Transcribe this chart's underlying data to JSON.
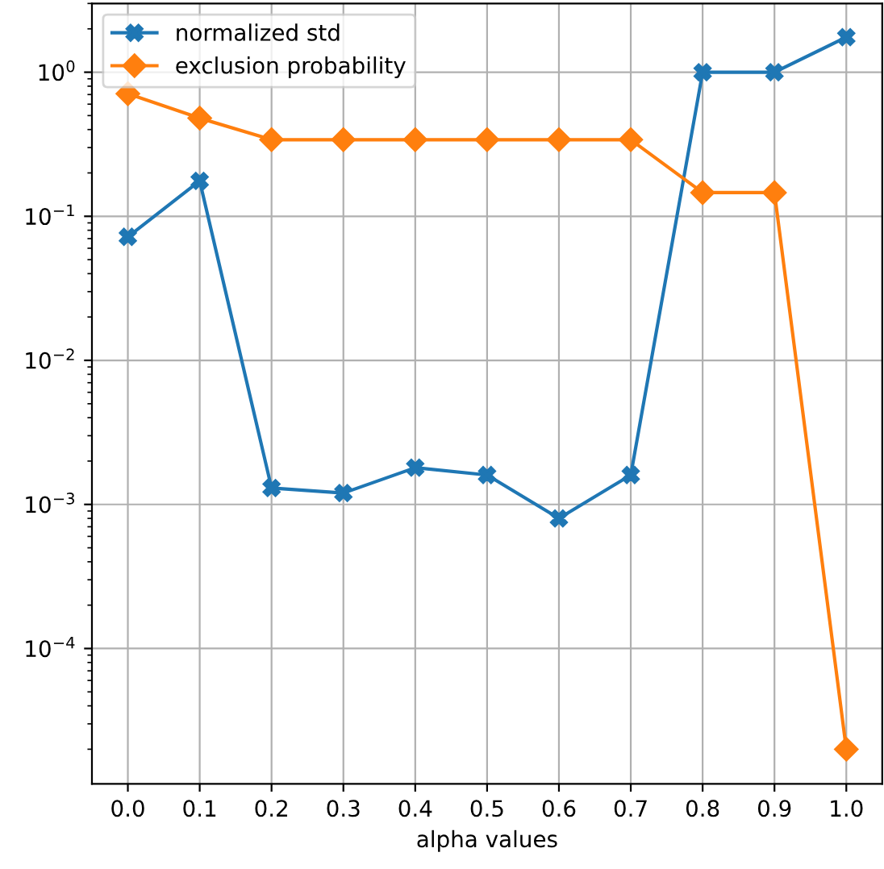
{
  "chart_data": {
    "type": "line",
    "xlabel": "alpha values",
    "log": "y",
    "grid": true,
    "legend": "top left",
    "x": [
      0.0,
      0.1,
      0.2,
      0.3,
      0.4,
      0.5,
      0.6,
      0.7,
      0.8,
      0.9,
      1.0
    ],
    "xlim": [
      -0.05,
      1.05
    ],
    "xticks": [
      {
        "value": 0.0,
        "label": "0.0"
      },
      {
        "value": 0.1,
        "label": "0.1"
      },
      {
        "value": 0.2,
        "label": "0.2"
      },
      {
        "value": 0.3,
        "label": "0.3"
      },
      {
        "value": 0.4,
        "label": "0.4"
      },
      {
        "value": 0.5,
        "label": "0.5"
      },
      {
        "value": 0.6,
        "label": "0.6"
      },
      {
        "value": 0.7,
        "label": "0.7"
      },
      {
        "value": 0.8,
        "label": "0.8"
      },
      {
        "value": 0.9,
        "label": "0.9"
      },
      {
        "value": 1.0,
        "label": "1.0"
      }
    ],
    "ylim": [
      1.15e-05,
      3.0
    ],
    "yticks": [
      {
        "value": 0.0001,
        "label": "10$^{−4}$"
      },
      {
        "value": 0.001,
        "label": "10$^{−3}$"
      },
      {
        "value": 0.01,
        "label": "10$^{−2}$"
      },
      {
        "value": 0.1,
        "label": "10$^{−1}$"
      },
      {
        "value": 1,
        "label": "10$^{0}$"
      }
    ],
    "series": [
      {
        "name": "normalized std",
        "color": "#1f77b4",
        "marker": "cross",
        "values": [
          0.072,
          0.176,
          0.0013,
          0.0012,
          0.0018,
          0.0016,
          0.0008,
          0.0016,
          1.0,
          1.0,
          1.75
        ]
      },
      {
        "name": "exclusion probability",
        "color": "#ff7f0e",
        "marker": "diamond",
        "values": [
          0.71,
          0.48,
          0.34,
          0.34,
          0.34,
          0.34,
          0.34,
          0.34,
          0.146,
          0.146,
          2e-05
        ]
      }
    ]
  }
}
